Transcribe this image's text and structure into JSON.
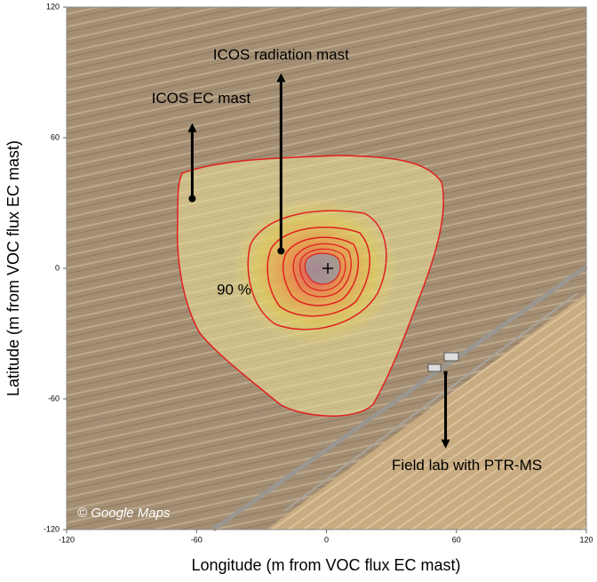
{
  "chart_data": {
    "type": "map",
    "x_label": "Longitude (m from VOC flux EC mast)",
    "y_label": "Latitude (m from VOC flux EC mast)",
    "xlim": [
      -120,
      120
    ],
    "xticks": [
      -120,
      -60,
      0,
      60,
      120
    ],
    "ylim": [
      -120,
      120
    ],
    "yticks": [
      -120,
      -60,
      0,
      60,
      120
    ],
    "contour_label": "90 %",
    "credit": "© Google Maps",
    "annotations": [
      {
        "text": "ICOS EC mast",
        "x": -62,
        "y": 32
      },
      {
        "text": "ICOS radiation mast",
        "x": -21,
        "y": 8
      },
      {
        "text": "Field lab with PTR-MS",
        "x": 55,
        "y": -48
      }
    ]
  }
}
